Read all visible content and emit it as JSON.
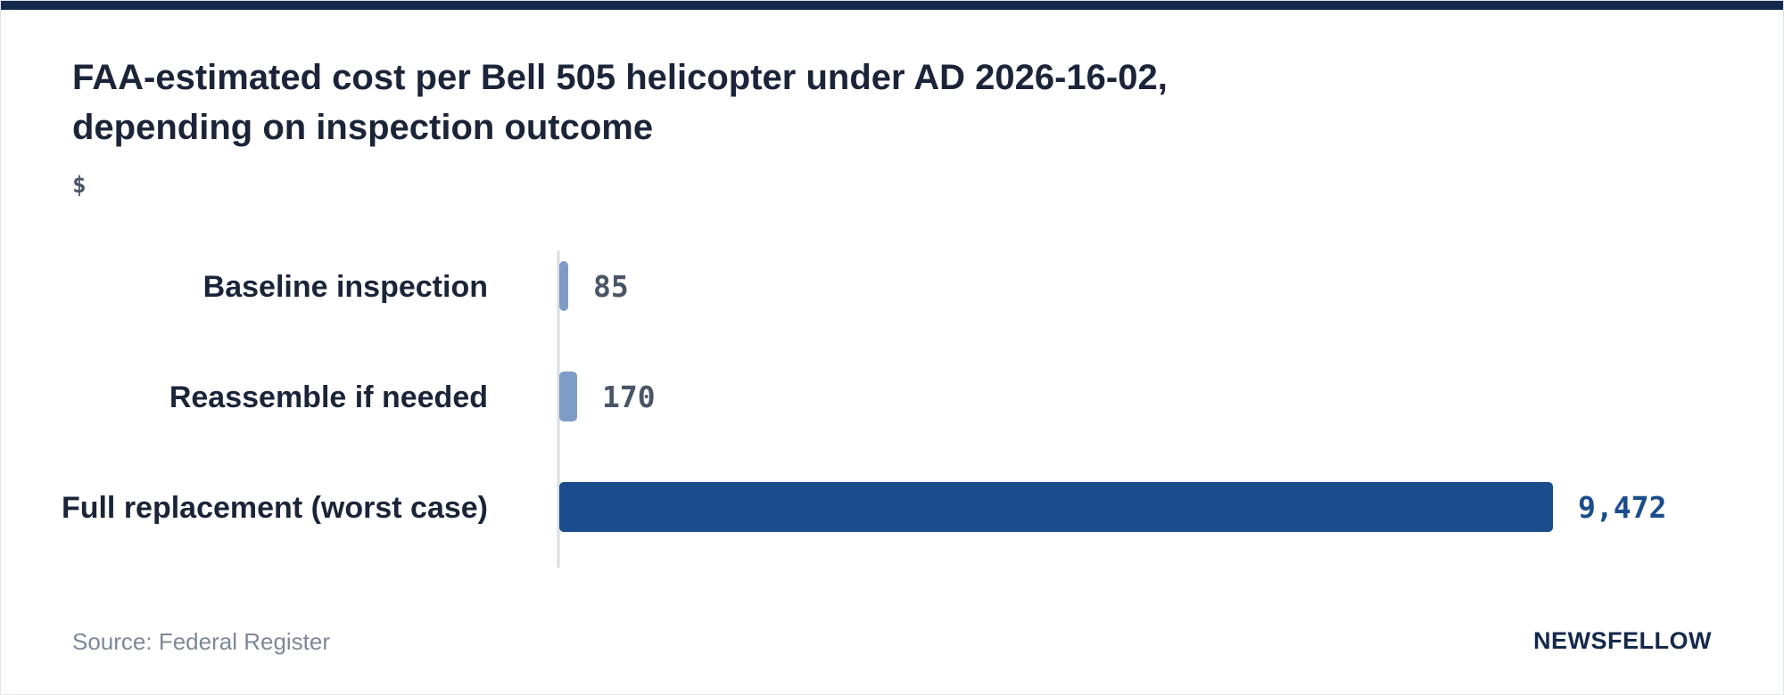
{
  "header": {
    "title": "FAA-estimated cost per Bell 505 helicopter under AD 2026-16-02, depending on inspection outcome",
    "unit": "$"
  },
  "footer": {
    "source": "Source: Federal Register",
    "brand": "NEWSFELLOW"
  },
  "colors": {
    "accent": "#1b4d8c",
    "muted": "#7f9cc6",
    "muted_text": "#4a5566",
    "axis": "#d9dde2"
  },
  "chart_data": {
    "type": "bar",
    "orientation": "horizontal",
    "categories": [
      "Baseline inspection",
      "Reassemble if needed",
      "Full replacement (worst case)"
    ],
    "values": [
      85,
      170,
      9472
    ],
    "value_labels": [
      "85",
      "170",
      "9,472"
    ],
    "highlight": [
      false,
      false,
      true
    ],
    "title": "FAA-estimated cost per Bell 505 helicopter under AD 2026-16-02, depending on inspection outcome",
    "xlabel": "",
    "ylabel": "$",
    "xlim": [
      0,
      9472
    ],
    "grid": false,
    "legend": "none"
  }
}
